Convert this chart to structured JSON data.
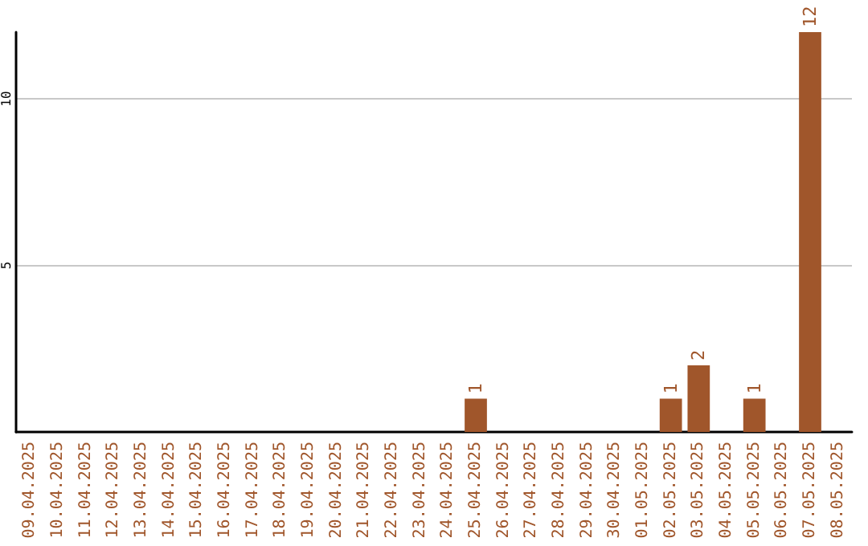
{
  "chart_data": {
    "type": "bar",
    "categories": [
      "09.04.2025",
      "10.04.2025",
      "11.04.2025",
      "12.04.2025",
      "13.04.2025",
      "14.04.2025",
      "15.04.2025",
      "16.04.2025",
      "17.04.2025",
      "18.04.2025",
      "19.04.2025",
      "20.04.2025",
      "21.04.2025",
      "22.04.2025",
      "23.04.2025",
      "24.04.2025",
      "25.04.2025",
      "26.04.2025",
      "27.04.2025",
      "28.04.2025",
      "29.04.2025",
      "30.04.2025",
      "01.05.2025",
      "02.05.2025",
      "03.05.2025",
      "04.05.2025",
      "05.05.2025",
      "06.05.2025",
      "07.05.2025",
      "08.05.2025"
    ],
    "values": [
      0,
      0,
      0,
      0,
      0,
      0,
      0,
      0,
      0,
      0,
      0,
      0,
      0,
      0,
      0,
      0,
      1,
      0,
      0,
      0,
      0,
      0,
      0,
      1,
      2,
      0,
      1,
      0,
      12,
      0
    ],
    "value_labels": [
      null,
      null,
      null,
      null,
      null,
      null,
      null,
      null,
      null,
      null,
      null,
      null,
      null,
      null,
      null,
      null,
      "1",
      null,
      null,
      null,
      null,
      null,
      null,
      "1",
      "2",
      null,
      "1",
      null,
      "12",
      null
    ],
    "color": "#a0562b",
    "ylim": [
      0,
      12
    ],
    "yticks": [
      5,
      10
    ],
    "grid": "y"
  }
}
